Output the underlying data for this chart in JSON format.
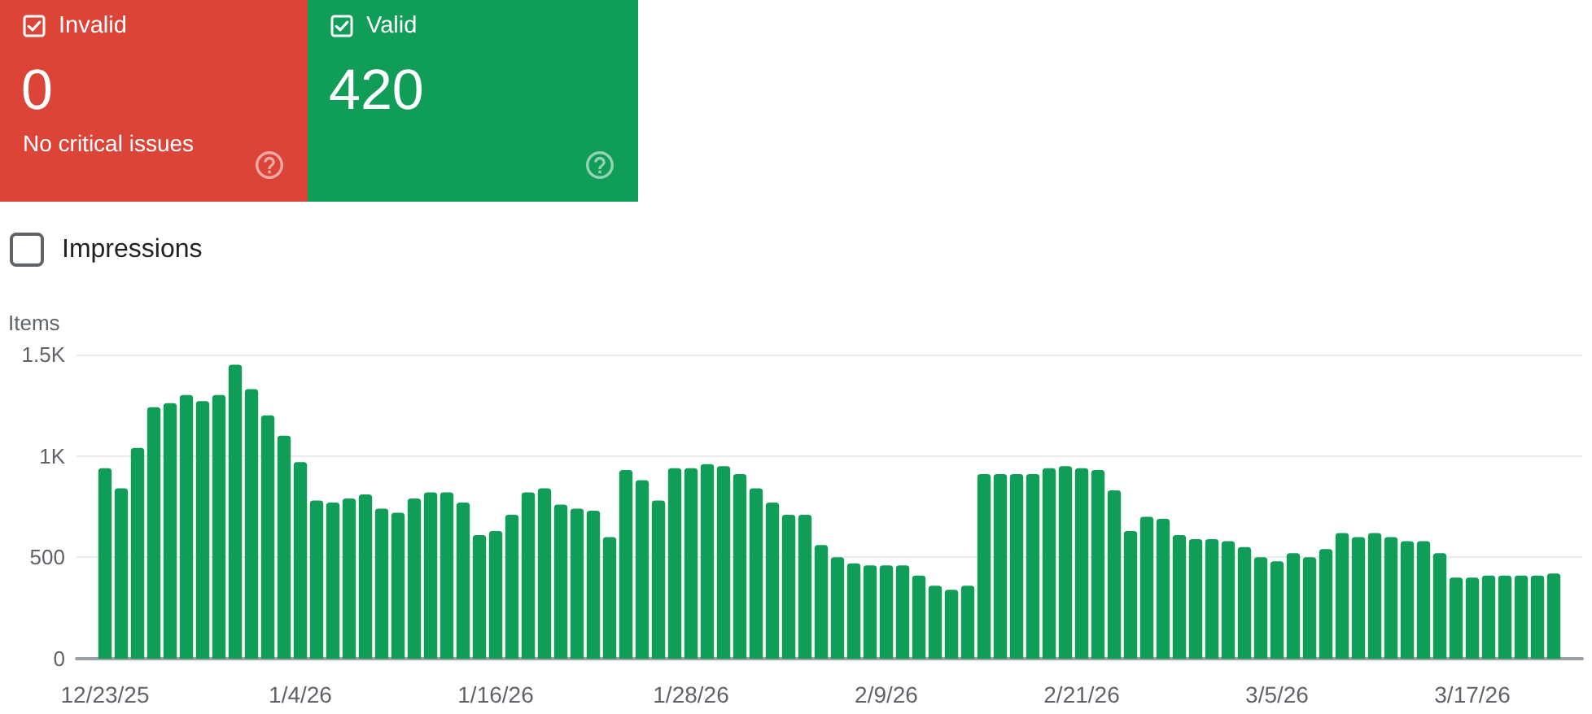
{
  "chart_data": [
    {
      "type": "other",
      "title": "Invalid",
      "values": [
        0
      ],
      "data_labels": true,
      "annotations": [
        "No critical issues"
      ],
      "color": "#db4437"
    },
    {
      "type": "other",
      "title": "Valid",
      "values": [
        420
      ],
      "data_labels": true,
      "color": "#0f9d58"
    },
    {
      "type": "bar",
      "ylabel": "Items",
      "annotations": [
        "Impressions"
      ],
      "color": "#0f9d58",
      "grid": "y",
      "ylim": [
        0,
        1500
      ],
      "yticks": [
        0,
        500,
        {
          "value": 1000,
          "label": "1K"
        },
        {
          "value": 1500,
          "label": "1.5K"
        }
      ],
      "categories": [
        "12/23/25",
        null,
        null,
        null,
        null,
        null,
        null,
        null,
        null,
        null,
        null,
        null,
        "1/4/26",
        null,
        null,
        null,
        null,
        null,
        null,
        null,
        null,
        null,
        null,
        null,
        "1/16/26",
        null,
        null,
        null,
        null,
        null,
        null,
        null,
        null,
        null,
        null,
        null,
        "1/28/26",
        null,
        null,
        null,
        null,
        null,
        null,
        null,
        null,
        null,
        null,
        null,
        "2/9/26",
        null,
        null,
        null,
        null,
        null,
        null,
        null,
        null,
        null,
        null,
        null,
        "2/21/26",
        null,
        null,
        null,
        null,
        null,
        null,
        null,
        null,
        null,
        null,
        null,
        "3/5/26",
        null,
        null,
        null,
        null,
        null,
        null,
        null,
        null,
        null,
        null,
        null,
        "3/17/26",
        null,
        null,
        null,
        null,
        null
      ],
      "values": [
        940,
        840,
        1040,
        1240,
        1260,
        1300,
        1270,
        1300,
        1450,
        1330,
        1200,
        1100,
        970,
        780,
        770,
        790,
        810,
        740,
        720,
        790,
        820,
        820,
        770,
        610,
        630,
        710,
        820,
        840,
        760,
        740,
        730,
        600,
        930,
        880,
        780,
        940,
        940,
        960,
        950,
        910,
        840,
        770,
        710,
        710,
        560,
        500,
        470,
        460,
        460,
        460,
        410,
        360,
        340,
        360,
        910,
        910,
        910,
        910,
        940,
        950,
        940,
        930,
        830,
        630,
        700,
        690,
        610,
        590,
        590,
        580,
        550,
        500,
        480,
        520,
        500,
        540,
        620,
        600,
        620,
        600,
        580,
        580,
        520,
        400,
        400,
        410,
        410,
        410,
        410,
        420
      ]
    }
  ]
}
